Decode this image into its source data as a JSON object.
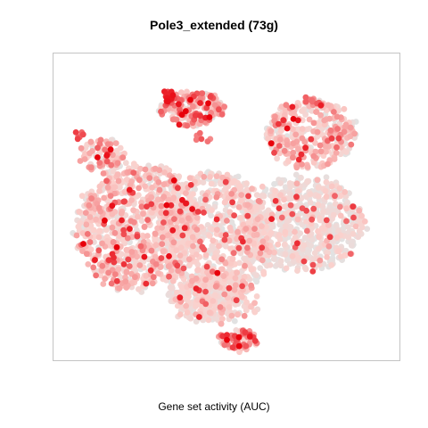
{
  "chart_data": {
    "type": "scatter",
    "title": "Pole3_extended (73g)",
    "xlabel": "Gene set activity (AUC)",
    "ylabel": "",
    "axes_visible": false,
    "grid": false,
    "legend": "none",
    "color_scale": {
      "low": "#e2e2e2",
      "mid": "#fbd0cc",
      "high": "#e8000b"
    },
    "clusters": [
      {
        "name": "left_mass",
        "cx": 0.24,
        "cy": 0.56,
        "rx": 0.19,
        "ry": 0.22,
        "n": 900,
        "score_mean": 0.22,
        "score_sd": 0.14
      },
      {
        "name": "center_mass",
        "cx": 0.46,
        "cy": 0.6,
        "rx": 0.17,
        "ry": 0.24,
        "n": 800,
        "score_mean": 0.16,
        "score_sd": 0.12
      },
      {
        "name": "right_mass",
        "cx": 0.72,
        "cy": 0.55,
        "rx": 0.19,
        "ry": 0.16,
        "n": 700,
        "score_mean": 0.1,
        "score_sd": 0.1
      },
      {
        "name": "top_left_island",
        "cx": 0.4,
        "cy": 0.18,
        "rx": 0.1,
        "ry": 0.06,
        "n": 180,
        "score_mean": 0.35,
        "score_sd": 0.22
      },
      {
        "name": "top_right_island",
        "cx": 0.74,
        "cy": 0.26,
        "rx": 0.14,
        "ry": 0.12,
        "n": 380,
        "score_mean": 0.24,
        "score_sd": 0.16
      },
      {
        "name": "lower_center",
        "cx": 0.46,
        "cy": 0.8,
        "rx": 0.14,
        "ry": 0.08,
        "n": 260,
        "score_mean": 0.15,
        "score_sd": 0.12
      },
      {
        "name": "bottom_island",
        "cx": 0.53,
        "cy": 0.93,
        "rx": 0.06,
        "ry": 0.04,
        "n": 70,
        "score_mean": 0.4,
        "score_sd": 0.22
      },
      {
        "name": "upper_left_spur",
        "cx": 0.14,
        "cy": 0.33,
        "rx": 0.07,
        "ry": 0.06,
        "n": 80,
        "score_mean": 0.32,
        "score_sd": 0.2
      }
    ],
    "hotspots": [
      {
        "x": 0.33,
        "y": 0.14,
        "n": 18,
        "score": 0.95
      },
      {
        "x": 0.07,
        "y": 0.27,
        "n": 6,
        "score": 0.8
      },
      {
        "x": 0.53,
        "y": 0.93,
        "n": 8,
        "score": 0.8
      },
      {
        "x": 0.74,
        "y": 0.15,
        "n": 10,
        "score": 0.7
      },
      {
        "x": 0.42,
        "y": 0.28,
        "n": 6,
        "score": 0.75
      },
      {
        "x": 0.16,
        "y": 0.66,
        "n": 4,
        "score": 0.85
      }
    ]
  }
}
